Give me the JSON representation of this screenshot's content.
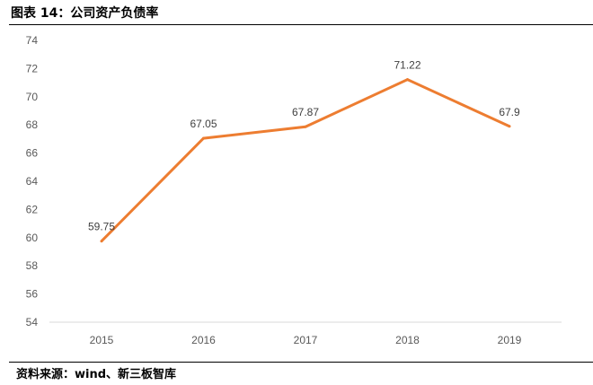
{
  "title": "图表 14：公司资产负债率",
  "source": "资料来源：wind、新三板智库",
  "chart_data": {
    "type": "line",
    "title": "",
    "categories": [
      "2015",
      "2016",
      "2017",
      "2018",
      "2019"
    ],
    "values": [
      59.75,
      67.05,
      67.87,
      71.22,
      67.9
    ],
    "labels": [
      "59.75",
      "67.05",
      "67.87",
      "71.22",
      "67.9"
    ],
    "ylim": [
      54,
      74
    ],
    "yticks": [
      54,
      56,
      58,
      60,
      62,
      64,
      66,
      68,
      70,
      72,
      74
    ],
    "grid": false,
    "color": "#ED7D31"
  }
}
